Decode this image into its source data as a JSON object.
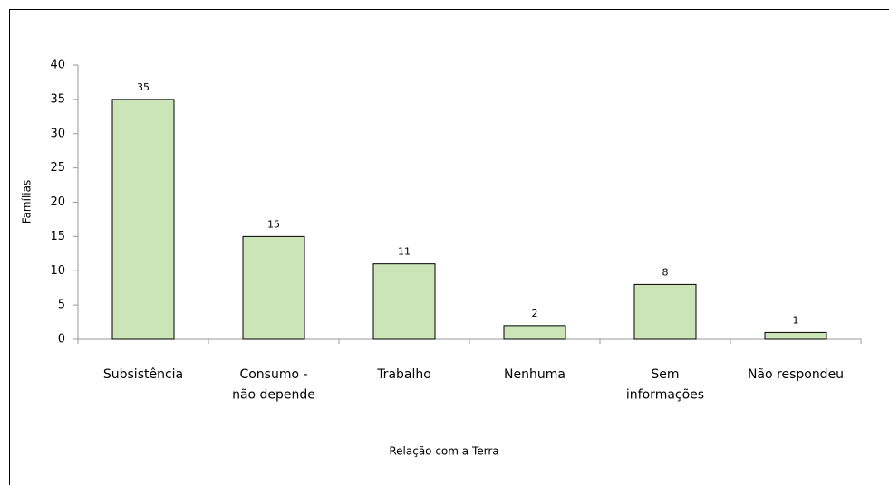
{
  "chart_data": {
    "type": "bar",
    "categories": [
      "Subsistência",
      "Consumo -\nnão depende",
      "Trabalho",
      "Nenhuma",
      "Sem\ninformações",
      "Não respondeu"
    ],
    "values": [
      35,
      15,
      11,
      2,
      8,
      1
    ],
    "color": "#cce5b8",
    "x_label": "Relação com a Terra",
    "y_label": "Famílias",
    "ylim": [
      0,
      40
    ],
    "yticks": [
      0,
      5,
      10,
      15,
      20,
      25,
      30,
      35,
      40
    ],
    "grid": false
  }
}
